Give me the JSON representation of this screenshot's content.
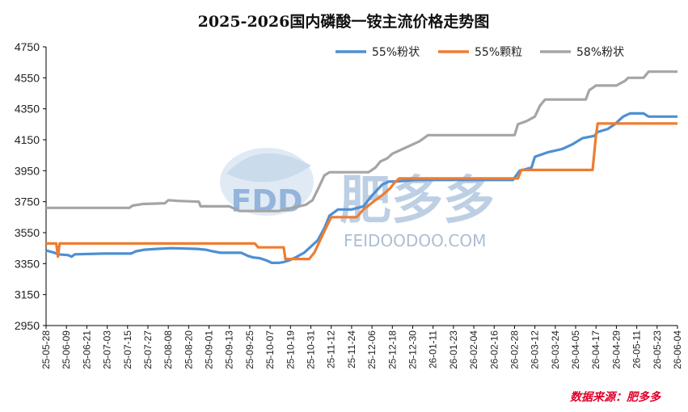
{
  "chart_data": {
    "type": "line",
    "title": "2025-2026国内磷酸一铵主流价格走势图",
    "source": "数据来源：肥多多",
    "ylim": [
      2950,
      4750
    ],
    "yticks": [
      2950,
      3150,
      3350,
      3550,
      3750,
      3950,
      4150,
      4350,
      4550,
      4750
    ],
    "x_start": "2025-05-28",
    "x_end": "2026-06-04",
    "xticks": [
      "25-05-28",
      "25-06-09",
      "25-06-21",
      "25-07-03",
      "25-07-15",
      "25-07-27",
      "25-08-08",
      "25-08-20",
      "25-09-01",
      "25-09-13",
      "25-09-25",
      "25-10-07",
      "25-10-19",
      "25-10-31",
      "25-11-12",
      "25-11-24",
      "25-12-06",
      "25-12-18",
      "25-12-30",
      "26-01-11",
      "26-01-23",
      "26-02-04",
      "26-02-16",
      "26-02-28",
      "26-03-12",
      "26-03-24",
      "26-04-05",
      "26-04-17",
      "26-04-29",
      "26-05-11",
      "26-05-23",
      "26-06-04"
    ],
    "legend_position": "top-right",
    "grid": false,
    "series": [
      {
        "name": "55%粉状",
        "color": "#4e8fd3",
        "points": [
          [
            "2025-05-28",
            3435
          ],
          [
            "2025-06-02",
            3420
          ],
          [
            "2025-06-04",
            3410
          ],
          [
            "2025-06-10",
            3405
          ],
          [
            "2025-06-12",
            3395
          ],
          [
            "2025-06-14",
            3410
          ],
          [
            "2025-07-01",
            3415
          ],
          [
            "2025-07-17",
            3415
          ],
          [
            "2025-07-20",
            3430
          ],
          [
            "2025-07-25",
            3440
          ],
          [
            "2025-08-01",
            3445
          ],
          [
            "2025-08-10",
            3450
          ],
          [
            "2025-08-25",
            3445
          ],
          [
            "2025-08-30",
            3440
          ],
          [
            "2025-09-03",
            3430
          ],
          [
            "2025-09-08",
            3420
          ],
          [
            "2025-09-20",
            3420
          ],
          [
            "2025-09-24",
            3400
          ],
          [
            "2025-09-27",
            3390
          ],
          [
            "2025-10-01",
            3385
          ],
          [
            "2025-10-05",
            3370
          ],
          [
            "2025-10-08",
            3355
          ],
          [
            "2025-10-12",
            3355
          ],
          [
            "2025-10-15",
            3360
          ],
          [
            "2025-10-18",
            3370
          ],
          [
            "2025-10-22",
            3390
          ],
          [
            "2025-10-27",
            3420
          ],
          [
            "2025-10-30",
            3450
          ],
          [
            "2025-11-04",
            3500
          ],
          [
            "2025-11-08",
            3580
          ],
          [
            "2025-11-11",
            3660
          ],
          [
            "2025-11-16",
            3700
          ],
          [
            "2025-11-24",
            3700
          ],
          [
            "2025-12-01",
            3720
          ],
          [
            "2025-12-06",
            3790
          ],
          [
            "2025-12-12",
            3860
          ],
          [
            "2025-12-16",
            3880
          ],
          [
            "2025-12-20",
            3880
          ],
          [
            "2026-01-01",
            3890
          ],
          [
            "2026-02-27",
            3890
          ],
          [
            "2026-03-03",
            3950
          ],
          [
            "2026-03-10",
            3970
          ],
          [
            "2026-03-12",
            4040
          ],
          [
            "2026-03-20",
            4070
          ],
          [
            "2026-03-28",
            4090
          ],
          [
            "2026-04-03",
            4120
          ],
          [
            "2026-04-09",
            4160
          ],
          [
            "2026-04-16",
            4175
          ],
          [
            "2026-04-18",
            4200
          ],
          [
            "2026-04-24",
            4220
          ],
          [
            "2026-04-28",
            4250
          ],
          [
            "2026-05-03",
            4300
          ],
          [
            "2026-05-07",
            4320
          ],
          [
            "2026-05-15",
            4320
          ],
          [
            "2026-05-18",
            4300
          ],
          [
            "2026-06-04",
            4300
          ]
        ]
      },
      {
        "name": "55%颗粒",
        "color": "#ed7d31",
        "points": [
          [
            "2025-05-28",
            3480
          ],
          [
            "2025-06-03",
            3480
          ],
          [
            "2025-06-04",
            3395
          ],
          [
            "2025-06-05",
            3480
          ],
          [
            "2025-09-28",
            3480
          ],
          [
            "2025-09-30",
            3455
          ],
          [
            "2025-10-15",
            3455
          ],
          [
            "2025-10-16",
            3380
          ],
          [
            "2025-10-30",
            3380
          ],
          [
            "2025-11-02",
            3420
          ],
          [
            "2025-11-08",
            3560
          ],
          [
            "2025-11-12",
            3650
          ],
          [
            "2025-11-27",
            3650
          ],
          [
            "2025-12-01",
            3700
          ],
          [
            "2025-12-08",
            3760
          ],
          [
            "2025-12-13",
            3800
          ],
          [
            "2025-12-17",
            3840
          ],
          [
            "2025-12-19",
            3870
          ],
          [
            "2025-12-22",
            3900
          ],
          [
            "2026-03-02",
            3900
          ],
          [
            "2026-03-04",
            3955
          ],
          [
            "2026-04-15",
            3955
          ],
          [
            "2026-04-17",
            4180
          ],
          [
            "2026-04-18",
            4255
          ],
          [
            "2026-06-04",
            4255
          ]
        ]
      },
      {
        "name": "58%粉状",
        "color": "#a5a5a5",
        "points": [
          [
            "2025-05-28",
            3710
          ],
          [
            "2025-07-16",
            3710
          ],
          [
            "2025-07-18",
            3725
          ],
          [
            "2025-07-24",
            3735
          ],
          [
            "2025-08-06",
            3740
          ],
          [
            "2025-08-08",
            3760
          ],
          [
            "2025-08-14",
            3755
          ],
          [
            "2025-08-26",
            3750
          ],
          [
            "2025-08-27",
            3720
          ],
          [
            "2025-09-13",
            3720
          ],
          [
            "2025-09-19",
            3690
          ],
          [
            "2025-10-12",
            3690
          ],
          [
            "2025-10-16",
            3700
          ],
          [
            "2025-10-24",
            3720
          ],
          [
            "2025-10-28",
            3730
          ],
          [
            "2025-11-01",
            3760
          ],
          [
            "2025-11-05",
            3850
          ],
          [
            "2025-11-08",
            3920
          ],
          [
            "2025-11-11",
            3940
          ],
          [
            "2025-12-04",
            3940
          ],
          [
            "2025-12-08",
            3970
          ],
          [
            "2025-12-11",
            4010
          ],
          [
            "2025-12-15",
            4030
          ],
          [
            "2025-12-18",
            4060
          ],
          [
            "2025-12-24",
            4090
          ],
          [
            "2025-12-28",
            4110
          ],
          [
            "2026-01-03",
            4140
          ],
          [
            "2026-01-08",
            4180
          ],
          [
            "2026-02-28",
            4180
          ],
          [
            "2026-03-02",
            4250
          ],
          [
            "2026-03-07",
            4270
          ],
          [
            "2026-03-12",
            4300
          ],
          [
            "2026-03-15",
            4370
          ],
          [
            "2026-03-18",
            4410
          ],
          [
            "2026-04-11",
            4410
          ],
          [
            "2026-04-13",
            4470
          ],
          [
            "2026-04-17",
            4500
          ],
          [
            "2026-04-29",
            4500
          ],
          [
            "2026-05-04",
            4530
          ],
          [
            "2026-05-06",
            4550
          ],
          [
            "2026-05-15",
            4550
          ],
          [
            "2026-05-18",
            4590
          ],
          [
            "2026-06-04",
            4590
          ]
        ]
      }
    ]
  },
  "watermark": {
    "logo": "FDD",
    "name": "肥多多",
    "url": "FEIDOODOO.COM"
  }
}
